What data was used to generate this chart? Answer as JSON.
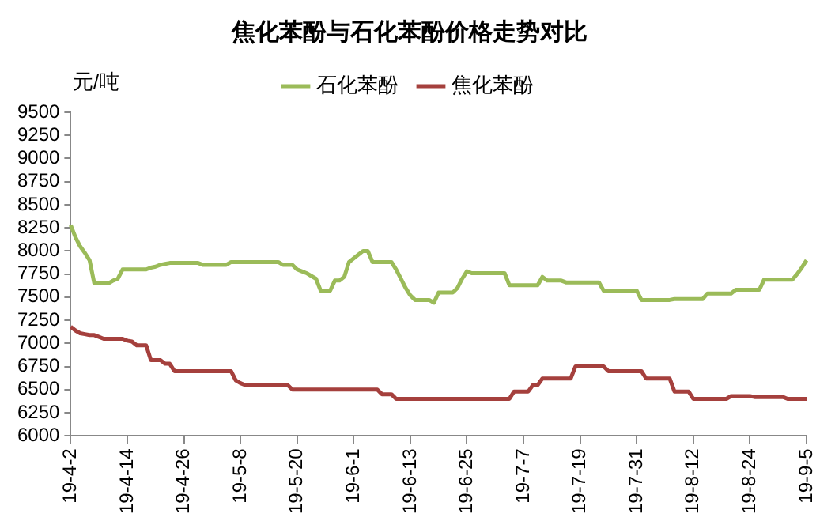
{
  "chart_data": {
    "type": "line",
    "title": "焦化苯酚与石化苯酚价格走势对比",
    "ylabel": "元/吨",
    "categories": [
      "19-4-2",
      null,
      null,
      null,
      null,
      null,
      null,
      null,
      null,
      null,
      null,
      null,
      "19-4-14",
      null,
      null,
      null,
      null,
      null,
      null,
      null,
      null,
      null,
      null,
      null,
      "19-4-26",
      null,
      null,
      null,
      null,
      null,
      null,
      null,
      null,
      null,
      null,
      null,
      "19-5-8",
      null,
      null,
      null,
      null,
      null,
      null,
      null,
      null,
      null,
      null,
      null,
      "19-5-20",
      null,
      null,
      null,
      null,
      null,
      null,
      null,
      null,
      null,
      null,
      null,
      "19-6-1",
      null,
      null,
      null,
      null,
      null,
      null,
      null,
      null,
      null,
      null,
      null,
      "19-6-13",
      null,
      null,
      null,
      null,
      null,
      null,
      null,
      null,
      null,
      null,
      null,
      "19-6-25",
      null,
      null,
      null,
      null,
      null,
      null,
      null,
      null,
      null,
      null,
      null,
      "19-7-7",
      null,
      null,
      null,
      null,
      null,
      null,
      null,
      null,
      null,
      null,
      null,
      "19-7-19",
      null,
      null,
      null,
      null,
      null,
      null,
      null,
      null,
      null,
      null,
      null,
      "19-7-31",
      null,
      null,
      null,
      null,
      null,
      null,
      null,
      null,
      null,
      null,
      null,
      "19-8-12",
      null,
      null,
      null,
      null,
      null,
      null,
      null,
      null,
      null,
      null,
      null,
      "19-8-24",
      null,
      null,
      null,
      null,
      null,
      null,
      null,
      null,
      null,
      null,
      null,
      "19-9-5"
    ],
    "series": [
      {
        "name": "石化苯酚",
        "color": "#9bbb59",
        "values": [
          8280,
          8150,
          8050,
          7980,
          7900,
          7650,
          7650,
          7650,
          7650,
          7680,
          7700,
          7800,
          7800,
          7800,
          7800,
          7800,
          7800,
          7820,
          7830,
          7850,
          7860,
          7870,
          7870,
          7870,
          7870,
          7870,
          7870,
          7870,
          7850,
          7850,
          7850,
          7850,
          7850,
          7850,
          7880,
          7880,
          7880,
          7880,
          7880,
          7880,
          7880,
          7880,
          7880,
          7880,
          7880,
          7850,
          7850,
          7850,
          7800,
          7780,
          7760,
          7730,
          7700,
          7570,
          7570,
          7570,
          7680,
          7680,
          7720,
          7880,
          7920,
          7960,
          8000,
          8000,
          7880,
          7880,
          7880,
          7880,
          7880,
          7800,
          7700,
          7600,
          7520,
          7470,
          7470,
          7470,
          7470,
          7440,
          7550,
          7550,
          7550,
          7550,
          7600,
          7700,
          7780,
          7760,
          7760,
          7760,
          7760,
          7760,
          7760,
          7760,
          7760,
          7630,
          7630,
          7630,
          7630,
          7630,
          7630,
          7630,
          7720,
          7680,
          7680,
          7680,
          7680,
          7660,
          7660,
          7660,
          7660,
          7660,
          7660,
          7660,
          7660,
          7570,
          7570,
          7570,
          7570,
          7570,
          7570,
          7570,
          7570,
          7470,
          7470,
          7470,
          7470,
          7470,
          7470,
          7470,
          7480,
          7480,
          7480,
          7480,
          7480,
          7480,
          7480,
          7540,
          7540,
          7540,
          7540,
          7540,
          7540,
          7580,
          7580,
          7580,
          7580,
          7580,
          7580,
          7690,
          7690,
          7690,
          7690,
          7690,
          7690,
          7690,
          7750,
          7820,
          7900
        ]
      },
      {
        "name": "焦化苯酚",
        "color": "#a5403d",
        "values": [
          7180,
          7140,
          7110,
          7100,
          7090,
          7090,
          7070,
          7050,
          7050,
          7050,
          7050,
          7050,
          7030,
          7020,
          6980,
          6980,
          6980,
          6820,
          6820,
          6820,
          6780,
          6780,
          6700,
          6700,
          6700,
          6700,
          6700,
          6700,
          6700,
          6700,
          6700,
          6700,
          6700,
          6700,
          6700,
          6600,
          6570,
          6550,
          6550,
          6550,
          6550,
          6550,
          6550,
          6550,
          6550,
          6550,
          6550,
          6500,
          6500,
          6500,
          6500,
          6500,
          6500,
          6500,
          6500,
          6500,
          6500,
          6500,
          6500,
          6500,
          6500,
          6500,
          6500,
          6500,
          6500,
          6500,
          6450,
          6450,
          6450,
          6400,
          6400,
          6400,
          6400,
          6400,
          6400,
          6400,
          6400,
          6400,
          6400,
          6400,
          6400,
          6400,
          6400,
          6400,
          6400,
          6400,
          6400,
          6400,
          6400,
          6400,
          6400,
          6400,
          6400,
          6400,
          6480,
          6480,
          6480,
          6480,
          6550,
          6550,
          6620,
          6620,
          6620,
          6620,
          6620,
          6620,
          6620,
          6750,
          6750,
          6750,
          6750,
          6750,
          6750,
          6750,
          6700,
          6700,
          6700,
          6700,
          6700,
          6700,
          6700,
          6700,
          6620,
          6620,
          6620,
          6620,
          6620,
          6620,
          6480,
          6480,
          6480,
          6480,
          6400,
          6400,
          6400,
          6400,
          6400,
          6400,
          6400,
          6400,
          6430,
          6430,
          6430,
          6430,
          6430,
          6420,
          6420,
          6420,
          6420,
          6420,
          6420,
          6420,
          6400,
          6400,
          6400,
          6400,
          6400
        ]
      }
    ],
    "ylim": [
      6000,
      9500
    ],
    "yticks": [
      6000,
      6250,
      6500,
      6750,
      7000,
      7250,
      7500,
      7750,
      8000,
      8250,
      8500,
      8750,
      9000,
      9250,
      9500
    ],
    "grid": false,
    "legend": "top",
    "marker": "none",
    "line_style": "solid"
  }
}
